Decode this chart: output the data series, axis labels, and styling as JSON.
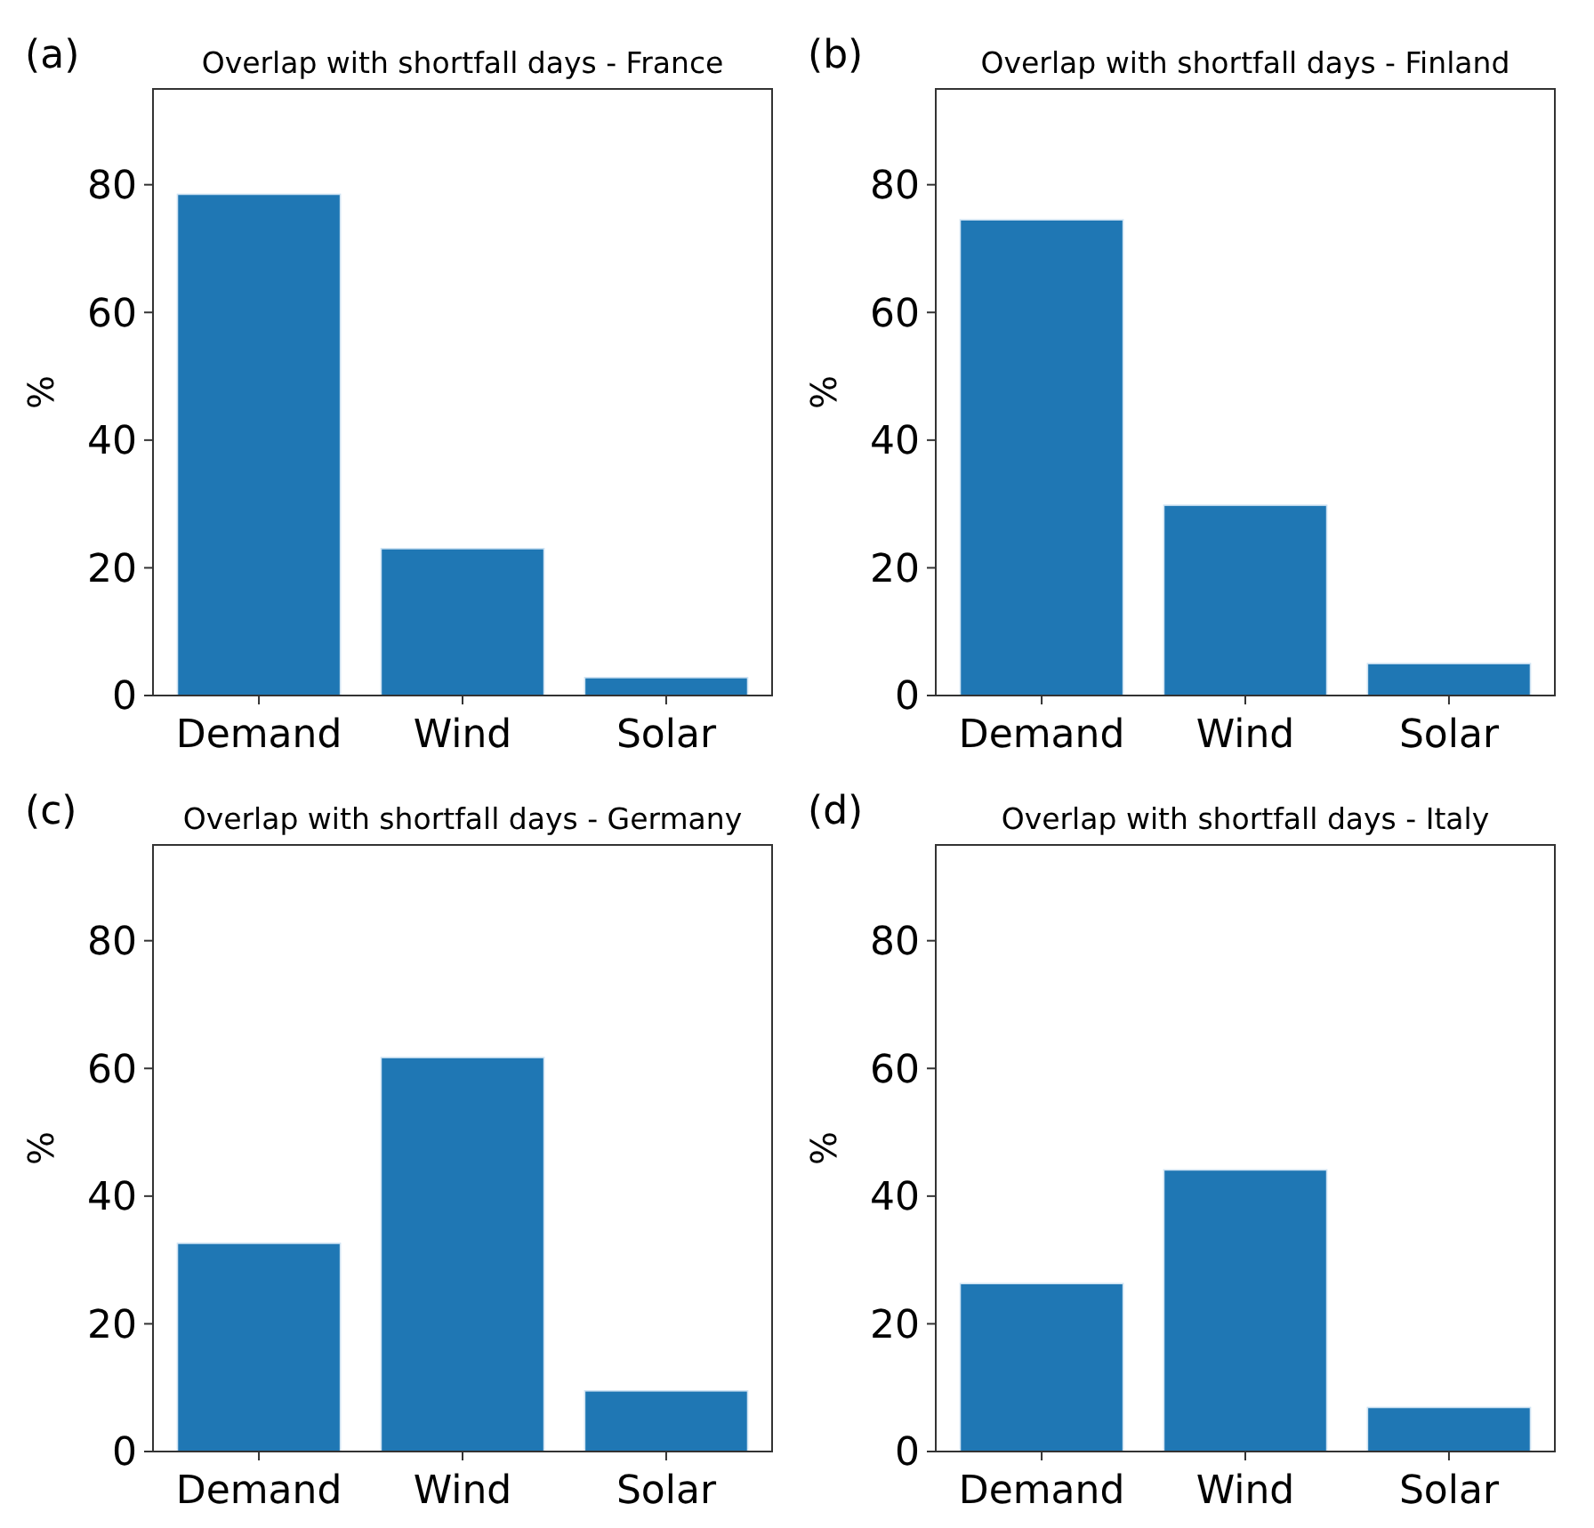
{
  "chart_data": [
    {
      "type": "bar",
      "title": "Overlap with shortfall days - France",
      "ylabel": "%",
      "annotations": [
        "(a)"
      ],
      "categories": [
        "Demand",
        "Wind",
        "Solar"
      ],
      "values": [
        78.5,
        23.0,
        2.8
      ],
      "color": "#1f77b4",
      "ylim": [
        0,
        95
      ],
      "yticks": [
        0,
        20,
        40,
        60,
        80
      ]
    },
    {
      "type": "bar",
      "title": "Overlap with shortfall days - Finland",
      "ylabel": "%",
      "annotations": [
        "(b)"
      ],
      "categories": [
        "Demand",
        "Wind",
        "Solar"
      ],
      "values": [
        74.5,
        29.8,
        5.0
      ],
      "color": "#1f77b4",
      "ylim": [
        0,
        95
      ],
      "yticks": [
        0,
        20,
        40,
        60,
        80
      ]
    },
    {
      "type": "bar",
      "title": "Overlap with shortfall days - Germany",
      "ylabel": "%",
      "annotations": [
        "(c)"
      ],
      "categories": [
        "Demand",
        "Wind",
        "Solar"
      ],
      "values": [
        32.6,
        61.7,
        9.5
      ],
      "color": "#1f77b4",
      "ylim": [
        0,
        95
      ],
      "yticks": [
        0,
        20,
        40,
        60,
        80
      ]
    },
    {
      "type": "bar",
      "title": "Overlap with shortfall days - Italy",
      "ylabel": "%",
      "annotations": [
        "(d)"
      ],
      "categories": [
        "Demand",
        "Wind",
        "Solar"
      ],
      "values": [
        26.3,
        44.1,
        6.9
      ],
      "color": "#1f77b4",
      "ylim": [
        0,
        95
      ],
      "yticks": [
        0,
        20,
        40,
        60,
        80
      ]
    }
  ]
}
